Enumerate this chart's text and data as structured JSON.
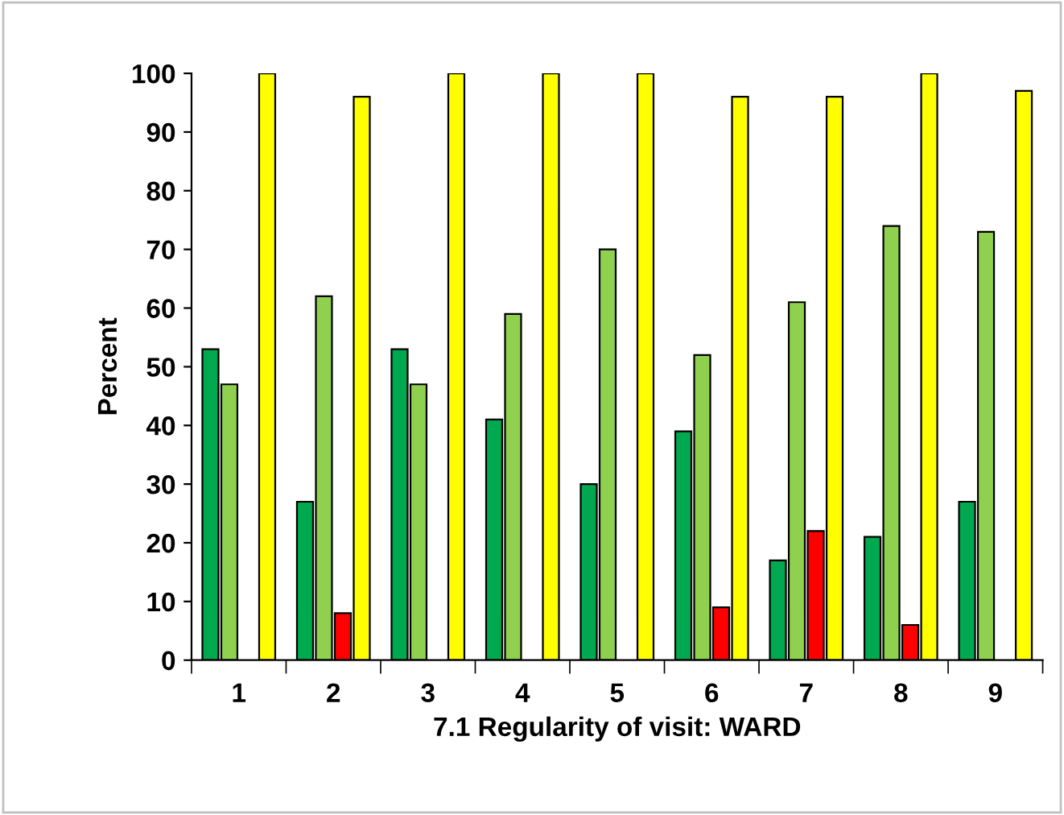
{
  "chart_data": {
    "type": "bar",
    "xlabel": "7.1 Regularity of visit: WARD",
    "ylabel": "Percent",
    "categories": [
      "1",
      "2",
      "3",
      "4",
      "5",
      "6",
      "7",
      "8",
      "9"
    ],
    "series": [
      {
        "color": "#00a94f",
        "values": [
          53,
          27,
          53,
          41,
          30,
          39,
          17,
          21,
          27
        ]
      },
      {
        "color": "#8fd14f",
        "values": [
          47,
          62,
          47,
          59,
          70,
          52,
          61,
          74,
          73
        ]
      },
      {
        "color": "#ff0000",
        "values": [
          null,
          8,
          null,
          null,
          null,
          9,
          22,
          6,
          null
        ]
      },
      {
        "color": "#ffff00",
        "values": [
          100,
          96,
          100,
          100,
          100,
          96,
          96,
          100,
          97
        ]
      }
    ],
    "ylim": [
      0,
      100
    ],
    "yticks": [
      0,
      10,
      20,
      30,
      40,
      50,
      60,
      70,
      80,
      90,
      100
    ],
    "grid": false,
    "legend": false
  }
}
